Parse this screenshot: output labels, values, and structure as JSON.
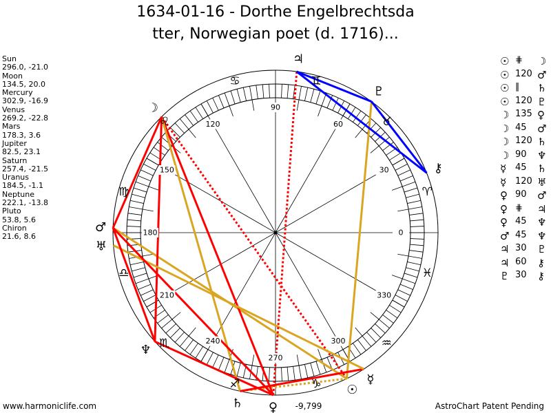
{
  "title": {
    "line1": "1634-01-16 - Dorthe Engelbrechtsda",
    "line2": "tter, Norwegian poet (d. 1716)..."
  },
  "planets": [
    {
      "name": "Sun",
      "coords": "296.0, -21.0",
      "lon": 296.0,
      "glyph": "☉"
    },
    {
      "name": "Moon",
      "coords": "134.5, 20.0",
      "lon": 134.5,
      "glyph": "☽"
    },
    {
      "name": "Mercury",
      "coords": "302.9, -16.9",
      "lon": 302.9,
      "glyph": "☿"
    },
    {
      "name": "Venus",
      "coords": "269.2, -22.8",
      "lon": 269.2,
      "glyph": "♀"
    },
    {
      "name": "Mars",
      "coords": "178.3, 3.6",
      "lon": 178.3,
      "glyph": "♂"
    },
    {
      "name": "Jupiter",
      "coords": "82.5, 23.1",
      "lon": 82.5,
      "glyph": "♃"
    },
    {
      "name": "Saturn",
      "coords": "257.4, -21.5",
      "lon": 257.4,
      "glyph": "♄"
    },
    {
      "name": "Uranus",
      "coords": "184.5, -1.1",
      "lon": 184.5,
      "glyph": "♅"
    },
    {
      "name": "Neptune",
      "coords": "222.1, -13.8",
      "lon": 222.1,
      "glyph": "♆"
    },
    {
      "name": "Pluto",
      "coords": "53.8, 5.6",
      "lon": 53.8,
      "glyph": "♇"
    },
    {
      "name": "Chiron",
      "coords": "21.6, 8.6",
      "lon": 21.6,
      "glyph": "⚷"
    }
  ],
  "signs": [
    "♈",
    "♉",
    "♊",
    "♋",
    "♌",
    "♍",
    "♎",
    "♏",
    "♐",
    "♑",
    "♒",
    "♓"
  ],
  "degree_labels": [
    "0",
    "30",
    "60",
    "90",
    "120",
    "150",
    "180",
    "210",
    "240",
    "270",
    "300",
    "330"
  ],
  "bottom_readout": "-9,799",
  "aspects": [
    {
      "p1": "Sun",
      "g1": "☉",
      "label": "⋕",
      "g2": "☽",
      "p2": "Moon",
      "style": "contraparallel"
    },
    {
      "p1": "Sun",
      "g1": "☉",
      "label": "120",
      "g2": "♂",
      "p2": "Mars",
      "style": "trine"
    },
    {
      "p1": "Sun",
      "g1": "☉",
      "label": "∥",
      "g2": "♄",
      "p2": "Saturn",
      "style": "parallel"
    },
    {
      "p1": "Sun",
      "g1": "☉",
      "label": "120",
      "g2": "♇",
      "p2": "Pluto",
      "style": "trine"
    },
    {
      "p1": "Moon",
      "g1": "☽",
      "label": "135",
      "g2": "♀",
      "p2": "Venus",
      "style": "hard"
    },
    {
      "p1": "Moon",
      "g1": "☽",
      "label": "45",
      "g2": "♂",
      "p2": "Mars",
      "style": "hard"
    },
    {
      "p1": "Moon",
      "g1": "☽",
      "label": "120",
      "g2": "♄",
      "p2": "Saturn",
      "style": "trine"
    },
    {
      "p1": "Moon",
      "g1": "☽",
      "label": "90",
      "g2": "♆",
      "p2": "Neptune",
      "style": "hard"
    },
    {
      "p1": "Mercury",
      "g1": "☿",
      "label": "45",
      "g2": "♄",
      "p2": "Saturn",
      "style": "hard"
    },
    {
      "p1": "Mercury",
      "g1": "☿",
      "label": "120",
      "g2": "♅",
      "p2": "Uranus",
      "style": "trine"
    },
    {
      "p1": "Venus",
      "g1": "♀",
      "label": "90",
      "g2": "♂",
      "p2": "Mars",
      "style": "hard"
    },
    {
      "p1": "Venus",
      "g1": "♀",
      "label": "⋕",
      "g2": "♃",
      "p2": "Jupiter",
      "style": "contraparallel"
    },
    {
      "p1": "Venus",
      "g1": "♀",
      "label": "45",
      "g2": "♆",
      "p2": "Neptune",
      "style": "hard"
    },
    {
      "p1": "Mars",
      "g1": "♂",
      "label": "45",
      "g2": "♆",
      "p2": "Neptune",
      "style": "hard"
    },
    {
      "p1": "Jupiter",
      "g1": "♃",
      "label": "30",
      "g2": "♇",
      "p2": "Pluto",
      "style": "soft"
    },
    {
      "p1": "Jupiter",
      "g1": "♃",
      "label": "60",
      "g2": "⚷",
      "p2": "Chiron",
      "style": "soft"
    },
    {
      "p1": "Pluto",
      "g1": "♇",
      "label": "30",
      "g2": "⚷",
      "p2": "Chiron",
      "style": "soft"
    }
  ],
  "colors": {
    "hard": "#ff0000",
    "trine": "#daa520",
    "soft": "#0000ff",
    "parallel": "#daa520",
    "contraparallel": "#ff0000"
  },
  "footer": {
    "left": "www.harmoniclife.com",
    "right": "AstroChart Patent Pending"
  }
}
